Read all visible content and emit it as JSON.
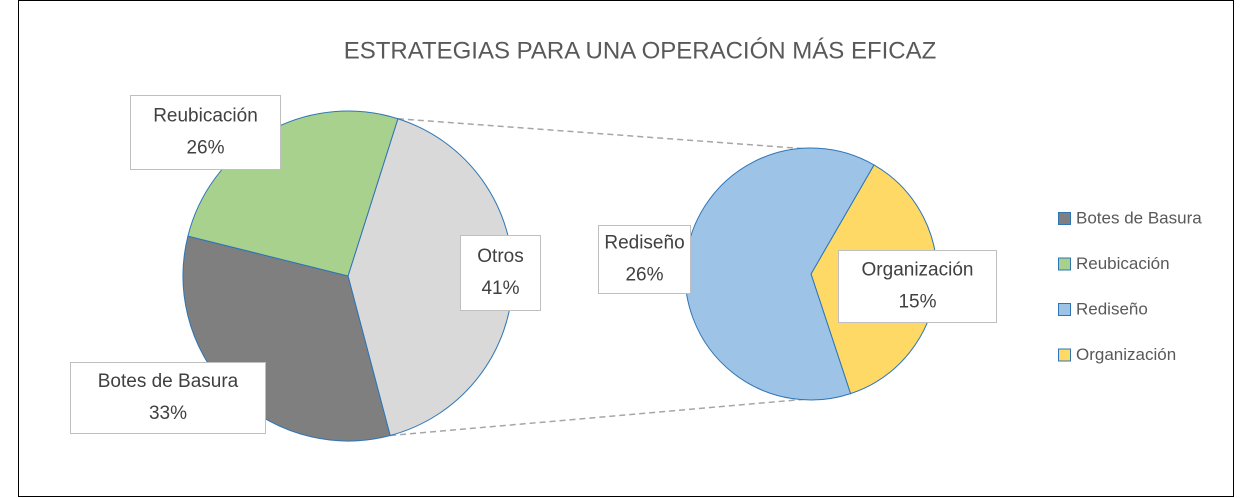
{
  "chart_data": {
    "type": "pie",
    "title": "ESTRATEGIAS PARA UNA OPERACIÓN MÁS EFICAZ",
    "categories": [
      "Botes de Basura",
      "Reubicación",
      "Rediseño",
      "Organización"
    ],
    "values": [
      33,
      26,
      26,
      15
    ],
    "value_labels": [
      "33%",
      "26%",
      "26%",
      "15%"
    ],
    "colors": [
      "#7f7f7f",
      "#a9d18e",
      "#9dc3e6",
      "#ffd966"
    ],
    "other": {
      "label": "Otros",
      "value": 41,
      "value_label": "41%",
      "color": "#d9d9d9"
    },
    "legend": "right"
  }
}
